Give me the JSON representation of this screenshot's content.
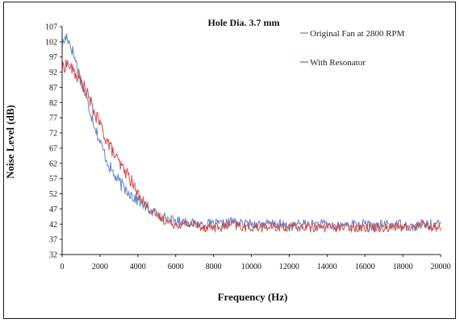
{
  "chart_data": {
    "type": "line",
    "title": "Hole Dia. 3.7 mm",
    "xlabel": "Frequency (Hz)",
    "ylabel": "Noise Level (dB)",
    "xlim": [
      0,
      20000
    ],
    "ylim": [
      32,
      107
    ],
    "xticks": [
      0,
      2000,
      4000,
      6000,
      8000,
      10000,
      12000,
      14000,
      16000,
      18000,
      20000
    ],
    "yticks": [
      107,
      102,
      97,
      92,
      87,
      82,
      77,
      72,
      67,
      62,
      57,
      52,
      47,
      42,
      37,
      32
    ],
    "grid": false,
    "legend_position": "top-right",
    "series": [
      {
        "name": "Original Fan at 2800 RPM",
        "color": "#5b84c4",
        "x": [
          0,
          250,
          500,
          750,
          1000,
          1250,
          1500,
          1750,
          2000,
          2250,
          2500,
          2750,
          3000,
          3250,
          3500,
          3750,
          4000,
          4500,
          5000,
          5500,
          6000,
          6500,
          7000,
          7500,
          8000,
          8500,
          9000,
          9500,
          10000,
          10500,
          11000,
          11500,
          12000,
          12500,
          13000,
          13500,
          14000,
          14500,
          15000,
          15500,
          16000,
          16500,
          17000,
          17500,
          18000,
          18500,
          19000,
          19500,
          20000
        ],
        "values": [
          101,
          104,
          100,
          95,
          89,
          84,
          79,
          74,
          69,
          65,
          61,
          58,
          56,
          54,
          53,
          51,
          50,
          47,
          45,
          44,
          43,
          43,
          42,
          42,
          42,
          42,
          43,
          42,
          42,
          42,
          42,
          42,
          41,
          42,
          42,
          42,
          42,
          41,
          42,
          42,
          42,
          41,
          42,
          42,
          42,
          41,
          42,
          42,
          42
        ]
      },
      {
        "name": "With Resonator",
        "color": "#d04a4a",
        "x": [
          0,
          250,
          500,
          750,
          1000,
          1250,
          1500,
          1750,
          2000,
          2250,
          2500,
          2750,
          3000,
          3250,
          3500,
          3750,
          4000,
          4500,
          5000,
          5500,
          6000,
          6500,
          7000,
          7500,
          8000,
          8500,
          9000,
          9500,
          10000,
          10500,
          11000,
          11500,
          12000,
          12500,
          13000,
          13500,
          14000,
          14500,
          15000,
          15500,
          16000,
          16500,
          17000,
          17500,
          18000,
          18500,
          19000,
          19500,
          20000
        ],
        "values": [
          93,
          95,
          93,
          91,
          89,
          86,
          82,
          78,
          75,
          71,
          68,
          65,
          62,
          60,
          58,
          55,
          52,
          48,
          45,
          43,
          42,
          42,
          42,
          41,
          41,
          41,
          42,
          41,
          41,
          41,
          41,
          41,
          41,
          41,
          41,
          41,
          41,
          41,
          41,
          41,
          41,
          41,
          41,
          41,
          41,
          41,
          42,
          41,
          41
        ]
      }
    ]
  }
}
